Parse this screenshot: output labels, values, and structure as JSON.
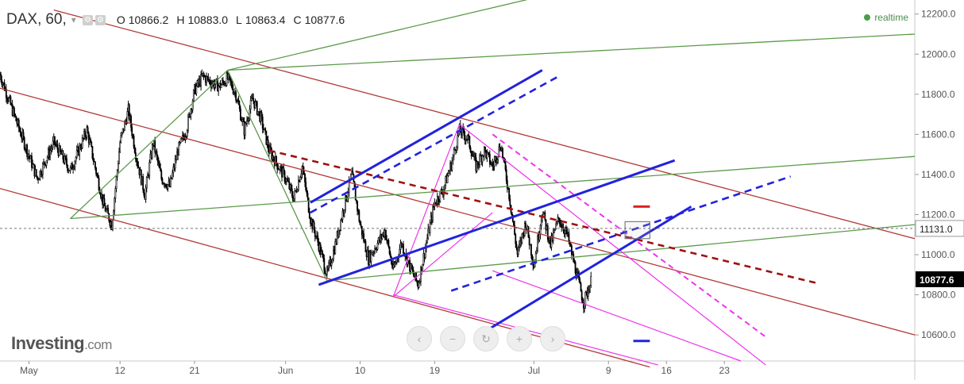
{
  "header": {
    "symbol": "DAX",
    "sep": ",",
    "interval": "60",
    "interval_sep": ",",
    "caret": "▾",
    "open_label": "O",
    "open": "10866.2",
    "high_label": "H",
    "high": "10883.0",
    "low_label": "L",
    "low": "10863.4",
    "close_label": "C",
    "close": "10877.6",
    "realtime": "realtime"
  },
  "logo": {
    "main": "Investing",
    "suffix": ".com"
  },
  "nav_buttons": [
    "‹",
    "−",
    "↻",
    "+",
    "›"
  ],
  "colors": {
    "candle": "#000000",
    "red_channel": "#b23a3a",
    "green_fan": "#5c9a4a",
    "blue_channel": "#2222dd",
    "magenta": "#ee33ee",
    "dashed_red": "#a01010",
    "crosshair": "#777777",
    "badge_dark": "#000000",
    "axis_text": "#555555",
    "realtime_dot": "#4a9c4a"
  },
  "chart_data": {
    "type": "candlestick",
    "title": "DAX, 60",
    "y_axis": {
      "position": "right",
      "ylim": [
        10470,
        12270
      ],
      "ticks": [
        "10600.0",
        "10800.0",
        "11000.0",
        "11200.0",
        "11400.0",
        "11600.0",
        "11800.0",
        "12000.0",
        "12200.0"
      ],
      "tick_values": [
        10600,
        10800,
        11000,
        11200,
        11400,
        11600,
        11800,
        12000,
        12200
      ]
    },
    "x_axis": {
      "labels": [
        "May",
        "12",
        "21",
        "Jun",
        "10",
        "19",
        "Jul",
        "9",
        "16",
        "23"
      ],
      "label_positions_days": [
        0,
        11,
        20,
        31,
        40,
        49,
        61,
        70,
        77,
        84
      ],
      "day_range": [
        -3.5,
        107
      ],
      "start_date": "2018-05-01",
      "unit": "days since start_date"
    },
    "crosshair_price": "11131.0",
    "last_price": "10877.6",
    "price_anchors": [
      [
        -3.5,
        11900
      ],
      [
        -2,
        11720
      ],
      [
        1,
        11380
      ],
      [
        3,
        11560
      ],
      [
        5,
        11420
      ],
      [
        7,
        11620
      ],
      [
        9,
        11250
      ],
      [
        10,
        11150
      ],
      [
        11,
        11560
      ],
      [
        12,
        11720
      ],
      [
        13,
        11480
      ],
      [
        14,
        11300
      ],
      [
        15,
        11560
      ],
      [
        16,
        11380
      ],
      [
        17,
        11340
      ],
      [
        18,
        11520
      ],
      [
        19,
        11620
      ],
      [
        20,
        11820
      ],
      [
        21,
        11890
      ],
      [
        22,
        11860
      ],
      [
        23,
        11840
      ],
      [
        24,
        11880
      ],
      [
        25,
        11800
      ],
      [
        26,
        11620
      ],
      [
        27,
        11780
      ],
      [
        28,
        11680
      ],
      [
        29,
        11520
      ],
      [
        30,
        11450
      ],
      [
        31,
        11380
      ],
      [
        32,
        11280
      ],
      [
        33,
        11440
      ],
      [
        34,
        11180
      ],
      [
        35,
        11050
      ],
      [
        36,
        10900
      ],
      [
        37,
        11050
      ],
      [
        38,
        11230
      ],
      [
        39,
        11400
      ],
      [
        40,
        11150
      ],
      [
        41,
        10980
      ],
      [
        42,
        11050
      ],
      [
        43,
        11120
      ],
      [
        44,
        10920
      ],
      [
        45,
        11060
      ],
      [
        46,
        10940
      ],
      [
        47,
        10850
      ],
      [
        48,
        11060
      ],
      [
        49,
        11260
      ],
      [
        50,
        11320
      ],
      [
        51,
        11450
      ],
      [
        52,
        11620
      ],
      [
        53,
        11580
      ],
      [
        54,
        11440
      ],
      [
        55,
        11520
      ],
      [
        56,
        11440
      ],
      [
        57,
        11550
      ],
      [
        58,
        11300
      ],
      [
        59,
        11000
      ],
      [
        60,
        11160
      ],
      [
        61,
        10950
      ],
      [
        62,
        11220
      ],
      [
        63,
        11050
      ],
      [
        64,
        11180
      ],
      [
        65,
        11100
      ],
      [
        66,
        10930
      ],
      [
        67,
        10760
      ],
      [
        68,
        10880
      ]
    ],
    "overlays": {
      "red_channel": [
        {
          "p1": [
            3,
            12220
          ],
          "p2": [
            107,
            11080
          ]
        },
        {
          "p1": [
            -3.5,
            11830
          ],
          "p2": [
            107,
            10600
          ]
        },
        {
          "p1": [
            -3.5,
            11330
          ],
          "p2": [
            75,
            10440
          ]
        }
      ],
      "green_fan": [
        {
          "p1": [
            5,
            11180
          ],
          "p2": [
            107,
            11490
          ]
        },
        {
          "p1": [
            5,
            11180
          ],
          "p2": [
            24,
            11920
          ]
        },
        {
          "p1": [
            24,
            11920
          ],
          "p2": [
            61,
            12280
          ]
        },
        {
          "p1": [
            24,
            11920
          ],
          "p2": [
            107,
            12100
          ]
        },
        {
          "p1": [
            24,
            11920
          ],
          "p2": [
            36,
            10870
          ]
        },
        {
          "p1": [
            36,
            10870
          ],
          "p2": [
            107,
            11150
          ]
        }
      ],
      "blue_solid": [
        {
          "p1": [
            34,
            11260
          ],
          "p2": [
            62,
            11920
          ]
        },
        {
          "p1": [
            35,
            10850
          ],
          "p2": [
            78,
            11470
          ]
        },
        {
          "p1": [
            54,
            10590
          ],
          "p2": [
            80,
            11240
          ]
        }
      ],
      "blue_dashed": [
        {
          "p1": [
            34,
            11210
          ],
          "p2": [
            64,
            11890
          ]
        },
        {
          "p1": [
            51,
            10820
          ],
          "p2": [
            92,
            11390
          ]
        }
      ],
      "magenta_solid": [
        {
          "p1": [
            44,
            10790
          ],
          "p2": [
            52,
            11650
          ]
        },
        {
          "p1": [
            52,
            11650
          ],
          "p2": [
            89,
            10450
          ]
        },
        {
          "p1": [
            44,
            10800
          ],
          "p2": [
            76,
            10450
          ]
        },
        {
          "p1": [
            44,
            10790
          ],
          "p2": [
            56,
            11210
          ]
        },
        {
          "p1": [
            56,
            10920
          ],
          "p2": [
            86,
            10470
          ]
        }
      ],
      "magenta_dashed": [
        {
          "p1": [
            56,
            11600
          ],
          "p2": [
            89,
            10590
          ]
        }
      ],
      "dashed_red": [
        {
          "p1": [
            29,
            11520
          ],
          "p2": [
            95,
            10860
          ]
        }
      ],
      "short_marks": [
        {
          "color": "red",
          "x1": 73,
          "x2": 75,
          "y": 11240
        },
        {
          "color": "blue",
          "x1": 73,
          "x2": 75,
          "y": 10570
        }
      ],
      "rect_box": {
        "x1": 72,
        "x2": 75,
        "y1": 11165,
        "y2": 11080
      }
    }
  }
}
